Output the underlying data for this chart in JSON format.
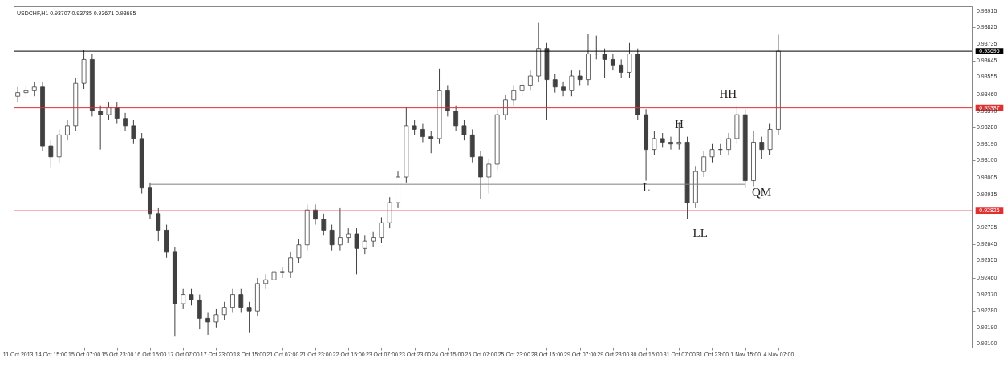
{
  "chart_data": {
    "type": "candlestick",
    "title": "USDCHF,H1  0.93707 0.93785 0.93671 0.93695",
    "color": "#404040",
    "categories": [
      "11 Oct 2013",
      null,
      null,
      null,
      "14 Oct 15:00",
      null,
      null,
      null,
      "15 Oct 07:00",
      null,
      null,
      null,
      "15 Oct 23:00",
      null,
      null,
      null,
      "16 Oct 15:00",
      null,
      null,
      null,
      "17 Oct 07:00",
      null,
      null,
      null,
      "17 Oct 23:00",
      null,
      null,
      null,
      "18 Oct 15:00",
      null,
      null,
      null,
      "21 Oct 07:00",
      null,
      null,
      null,
      "21 Oct 23:00",
      null,
      null,
      null,
      "22 Oct 15:00",
      null,
      null,
      null,
      "23 Oct 07:00",
      null,
      null,
      null,
      "23 Oct 23:00",
      null,
      null,
      null,
      "24 Oct 15:00",
      null,
      null,
      null,
      "25 Oct 07:00",
      null,
      null,
      null,
      "25 Oct 23:00",
      null,
      null,
      null,
      "28 Oct 15:00",
      null,
      null,
      null,
      "29 Oct 07:00",
      null,
      null,
      null,
      "29 Oct 23:00",
      null,
      null,
      null,
      "30 Oct 15:00",
      null,
      null,
      null,
      "31 Oct 07:00",
      null,
      null,
      null,
      "31 Oct 23:00",
      null,
      null,
      null,
      "1 Nov 15:00",
      null,
      null,
      null,
      "4 Nov 07:00",
      null,
      null,
      null,
      null,
      null,
      null,
      null,
      null,
      null,
      null,
      null,
      null,
      null,
      null,
      null,
      null,
      null,
      null,
      null,
      null,
      null,
      null,
      null
    ],
    "ohlc": [
      [
        0.9345,
        0.935,
        0.9342,
        0.9347
      ],
      [
        0.9347,
        0.9351,
        0.9344,
        0.9348
      ],
      [
        0.9348,
        0.9353,
        0.9345,
        0.935
      ],
      [
        0.935,
        0.9353,
        0.9315,
        0.9318
      ],
      [
        0.9318,
        0.9321,
        0.9306,
        0.9312
      ],
      [
        0.9312,
        0.9327,
        0.9309,
        0.9324
      ],
      [
        0.9324,
        0.9332,
        0.9321,
        0.9329
      ],
      [
        0.9329,
        0.9355,
        0.9326,
        0.9352
      ],
      [
        0.9352,
        0.937,
        0.9349,
        0.9365
      ],
      [
        0.9365,
        0.9368,
        0.9334,
        0.9337
      ],
      [
        0.9337,
        0.934,
        0.9316,
        0.9335
      ],
      [
        0.9335,
        0.9342,
        0.9332,
        0.9339
      ],
      [
        0.9339,
        0.9342,
        0.933,
        0.9333
      ],
      [
        0.9333,
        0.9336,
        0.9326,
        0.9329
      ],
      [
        0.9329,
        0.9332,
        0.9319,
        0.9322
      ],
      [
        0.9322,
        0.9325,
        0.9292,
        0.9295
      ],
      [
        0.9295,
        0.9298,
        0.9278,
        0.9281
      ],
      [
        0.9281,
        0.9284,
        0.9266,
        0.9272
      ],
      [
        0.9272,
        0.9275,
        0.9257,
        0.926
      ],
      [
        0.926,
        0.9263,
        0.9214,
        0.9232
      ],
      [
        0.9232,
        0.924,
        0.9229,
        0.9237
      ],
      [
        0.9237,
        0.924,
        0.9231,
        0.9234
      ],
      [
        0.9234,
        0.9237,
        0.9218,
        0.9224
      ],
      [
        0.9224,
        0.9227,
        0.9215,
        0.9222
      ],
      [
        0.9222,
        0.9229,
        0.9219,
        0.9226
      ],
      [
        0.9226,
        0.9233,
        0.9223,
        0.923
      ],
      [
        0.923,
        0.924,
        0.9227,
        0.9237
      ],
      [
        0.9237,
        0.924,
        0.9227,
        0.923
      ],
      [
        0.923,
        0.9233,
        0.9216,
        0.9228
      ],
      [
        0.9228,
        0.9246,
        0.9225,
        0.9243
      ],
      [
        0.9243,
        0.9248,
        0.924,
        0.9245
      ],
      [
        0.9245,
        0.9252,
        0.9242,
        0.9249
      ],
      [
        0.9249,
        0.9252,
        0.9246,
        0.9249
      ],
      [
        0.9249,
        0.926,
        0.9246,
        0.9257
      ],
      [
        0.9257,
        0.9267,
        0.9254,
        0.9264
      ],
      [
        0.9264,
        0.9286,
        0.9261,
        0.9283
      ],
      [
        0.9283,
        0.9286,
        0.9275,
        0.9278
      ],
      [
        0.9278,
        0.9281,
        0.9269,
        0.9272
      ],
      [
        0.9272,
        0.9275,
        0.9261,
        0.9264
      ],
      [
        0.9264,
        0.9284,
        0.9261,
        0.9268
      ],
      [
        0.9268,
        0.9273,
        0.9265,
        0.927
      ],
      [
        0.927,
        0.9273,
        0.9248,
        0.9262
      ],
      [
        0.9262,
        0.9269,
        0.9259,
        0.9266
      ],
      [
        0.9266,
        0.9271,
        0.9263,
        0.9268
      ],
      [
        0.9268,
        0.9279,
        0.9265,
        0.9276
      ],
      [
        0.9276,
        0.929,
        0.9273,
        0.9287
      ],
      [
        0.9287,
        0.9304,
        0.9284,
        0.9301
      ],
      [
        0.9301,
        0.9339,
        0.9298,
        0.9329
      ],
      [
        0.9329,
        0.9332,
        0.9324,
        0.9327
      ],
      [
        0.9327,
        0.933,
        0.932,
        0.9323
      ],
      [
        0.9323,
        0.9326,
        0.9314,
        0.9322
      ],
      [
        0.9322,
        0.936,
        0.9319,
        0.9348
      ],
      [
        0.9348,
        0.9351,
        0.9334,
        0.9337
      ],
      [
        0.9337,
        0.934,
        0.9326,
        0.9329
      ],
      [
        0.9329,
        0.9332,
        0.9321,
        0.9324
      ],
      [
        0.9324,
        0.9327,
        0.9309,
        0.9312
      ],
      [
        0.9312,
        0.9315,
        0.9289,
        0.9301
      ],
      [
        0.9301,
        0.9311,
        0.9292,
        0.9308
      ],
      [
        0.9308,
        0.9338,
        0.9305,
        0.9335
      ],
      [
        0.9335,
        0.9346,
        0.9332,
        0.9343
      ],
      [
        0.9343,
        0.9351,
        0.934,
        0.9348
      ],
      [
        0.9348,
        0.9354,
        0.9345,
        0.9351
      ],
      [
        0.9351,
        0.9359,
        0.9348,
        0.9356
      ],
      [
        0.9356,
        0.9385,
        0.9353,
        0.9371
      ],
      [
        0.9371,
        0.9374,
        0.9332,
        0.9354
      ],
      [
        0.9354,
        0.9357,
        0.9347,
        0.935
      ],
      [
        0.935,
        0.9353,
        0.9345,
        0.9348
      ],
      [
        0.9348,
        0.9359,
        0.9345,
        0.9356
      ],
      [
        0.9356,
        0.9359,
        0.9351,
        0.9354
      ],
      [
        0.9354,
        0.9379,
        0.9351,
        0.9368
      ],
      [
        0.9368,
        0.9378,
        0.9365,
        0.9368
      ],
      [
        0.9368,
        0.9371,
        0.9355,
        0.9365
      ],
      [
        0.9365,
        0.9368,
        0.9359,
        0.9362
      ],
      [
        0.9362,
        0.9365,
        0.9355,
        0.9358
      ],
      [
        0.9358,
        0.9374,
        0.9355,
        0.9368
      ],
      [
        0.9368,
        0.9371,
        0.9332,
        0.9335
      ],
      [
        0.9335,
        0.9338,
        0.9299,
        0.9316
      ],
      [
        0.9316,
        0.9326,
        0.9313,
        0.9322
      ],
      [
        0.9322,
        0.9325,
        0.9317,
        0.932
      ],
      [
        0.932,
        0.9323,
        0.9316,
        0.9319
      ],
      [
        0.9319,
        0.9331,
        0.9316,
        0.932
      ],
      [
        0.932,
        0.9323,
        0.9278,
        0.9287
      ],
      [
        0.9287,
        0.9307,
        0.9284,
        0.9304
      ],
      [
        0.9304,
        0.9315,
        0.9301,
        0.9312
      ],
      [
        0.9312,
        0.9319,
        0.9309,
        0.9316
      ],
      [
        0.9316,
        0.9319,
        0.9313,
        0.9316
      ],
      [
        0.9316,
        0.9325,
        0.9313,
        0.9322
      ],
      [
        0.9322,
        0.934,
        0.9319,
        0.9335
      ],
      [
        0.9335,
        0.9338,
        0.9295,
        0.9299
      ],
      [
        0.9299,
        0.9326,
        0.9296,
        0.932
      ],
      [
        0.932,
        0.9323,
        0.9311,
        0.9316
      ],
      [
        0.9316,
        0.933,
        0.9313,
        0.9327
      ],
      [
        0.9327,
        0.93785,
        0.9324,
        0.93695
      ],
      null,
      null,
      null,
      null,
      null,
      null,
      null,
      null,
      null,
      null,
      null,
      null,
      null,
      null,
      null,
      null,
      null,
      null,
      null,
      null,
      null,
      null,
      null
    ],
    "series": [
      {
        "type": "line",
        "x": [
          "16 Oct 15:00",
          "1 Nov 15:00"
        ],
        "values": [
          0.9297,
          0.9297
        ],
        "color": "#808080"
      }
    ],
    "ylim": [
      0.9208,
      0.9394
    ],
    "yticks": [
      0.93915,
      0.93825,
      0.93735,
      0.93645,
      0.93555,
      {
        "value": 0.9346,
        "label": "0.93460"
      },
      {
        "value": 0.9337,
        "label": "0.93370"
      },
      {
        "value": 0.9328,
        "label": "0.93280"
      },
      {
        "value": 0.9319,
        "label": "0.93190"
      },
      {
        "value": 0.931,
        "label": "0.93100"
      },
      0.93005,
      0.92915,
      0.92735,
      0.92645,
      0.92555,
      {
        "value": 0.9246,
        "label": "0.92460"
      },
      {
        "value": 0.9237,
        "label": "0.92370"
      },
      {
        "value": 0.9228,
        "label": "0.92280"
      },
      {
        "value": 0.9219,
        "label": "0.92190"
      },
      {
        "value": 0.921,
        "label": "0.92100"
      }
    ],
    "ref_lines": [
      {
        "axis": "y",
        "value": 0.93695,
        "label": "0.93695",
        "color": "#000000"
      },
      {
        "axis": "y",
        "value": 0.93387,
        "label": "0.93387",
        "color": "#e03030"
      },
      {
        "axis": "y",
        "value": 0.92826,
        "label": "0.92826",
        "color": "#e03030"
      }
    ],
    "annotations": [
      "L",
      "H",
      "HH",
      "LL",
      "QM"
    ]
  }
}
